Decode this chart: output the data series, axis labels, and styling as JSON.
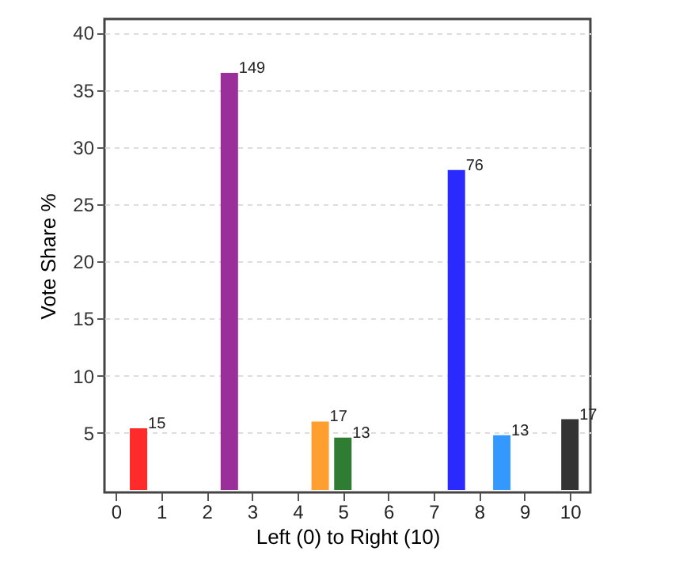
{
  "chart_data": {
    "type": "bar",
    "ylabel": "Vote Share %",
    "xlabel": "Left (0) to Right (10)",
    "x": [
      0.5,
      2.5,
      4.5,
      5,
      7.5,
      8.5,
      10
    ],
    "values": [
      5.4,
      36.5,
      6.0,
      4.6,
      28.0,
      4.8,
      6.2
    ],
    "colors": [
      "#ff2a2a",
      "#9a2f9a",
      "#ff9f2f",
      "#2e7d32",
      "#2a2aff",
      "#3399ff",
      "#333333"
    ],
    "annotations": [
      {
        "text": "15",
        "x": 0.5,
        "y": 5.4
      },
      {
        "text": "149",
        "x": 2.5,
        "y": 36.5
      },
      {
        "text": "17",
        "x": 4.5,
        "y": 6.0
      },
      {
        "text": "13",
        "x": 5,
        "y": 4.6
      },
      {
        "text": "76",
        "x": 7.5,
        "y": 28.0
      },
      {
        "text": "13",
        "x": 8.5,
        "y": 4.8
      },
      {
        "text": "17",
        "x": 10,
        "y": 6.2
      }
    ],
    "xlim": [
      -0.25,
      10.45
    ],
    "xticks": [
      0,
      1,
      2,
      3,
      4,
      5,
      6,
      7,
      8,
      9,
      10
    ],
    "ylim": [
      -0.2,
      41.2
    ],
    "yticks": [
      5,
      10,
      15,
      20,
      25,
      30,
      35,
      40
    ],
    "grid": "y"
  }
}
